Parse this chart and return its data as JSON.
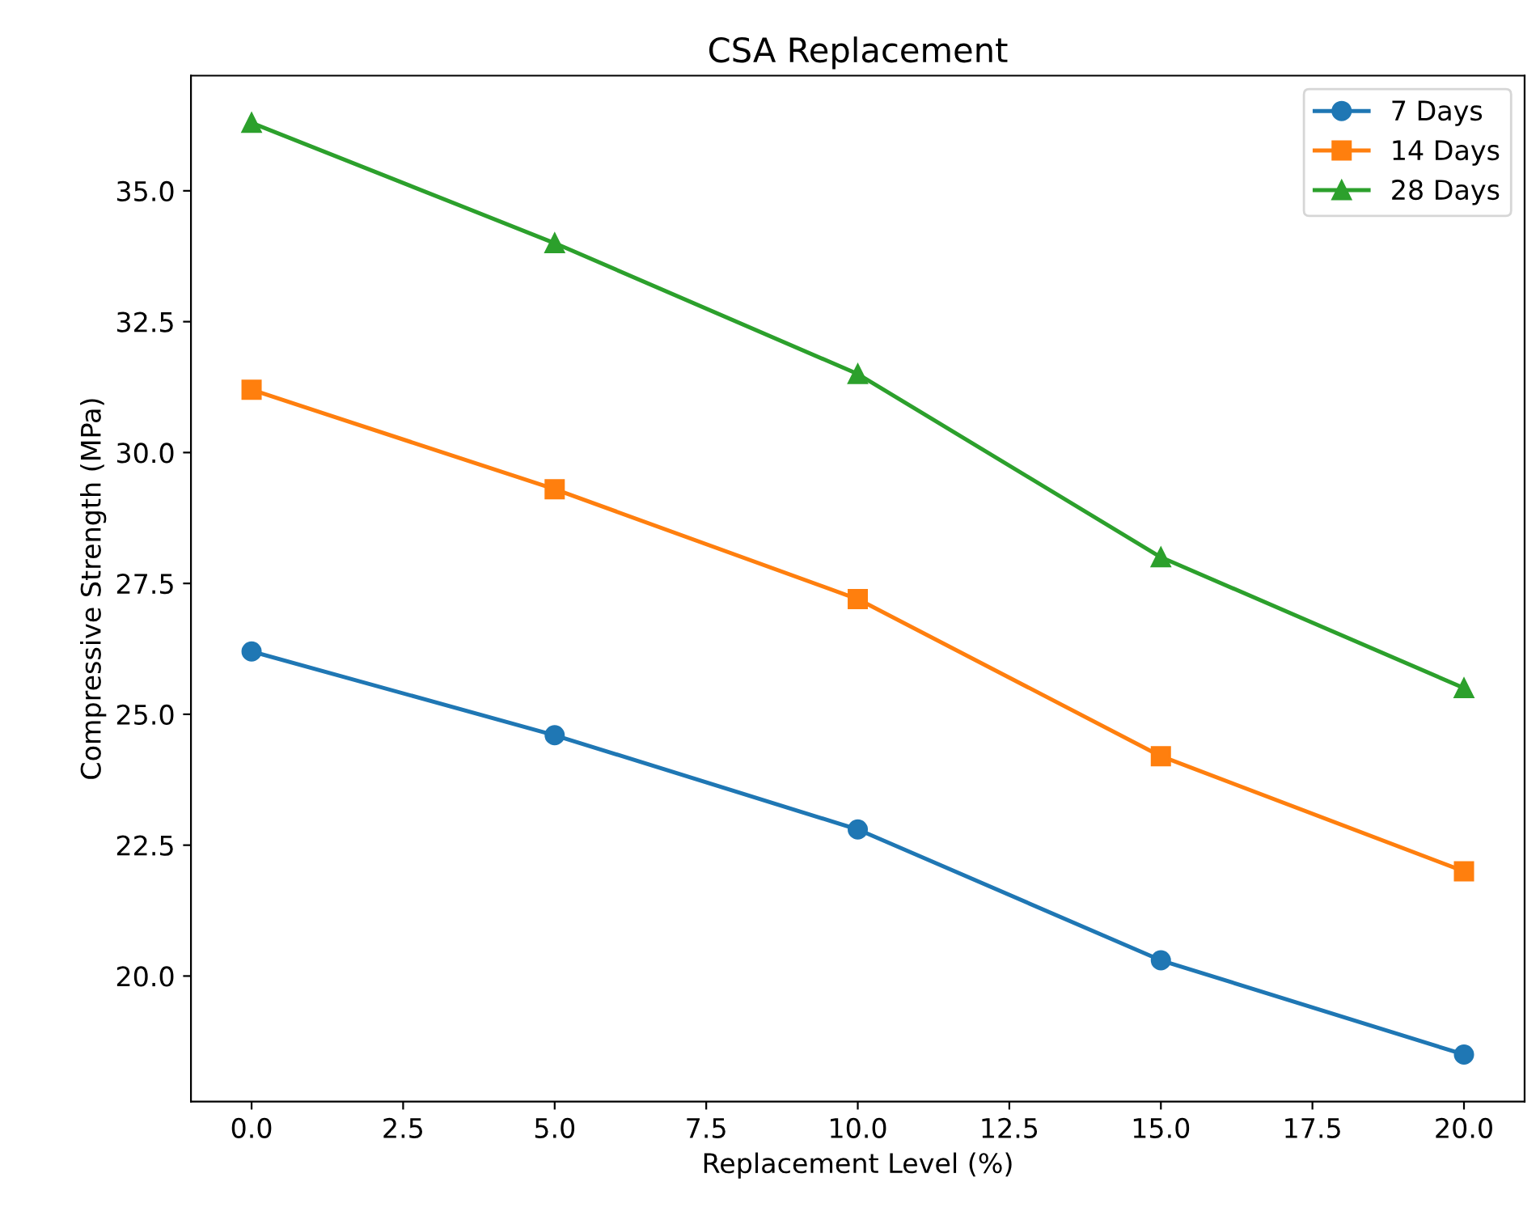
{
  "chart_data": {
    "type": "line",
    "title": "CSA Replacement",
    "xlabel": "Replacement Level (%)",
    "ylabel": "Compressive Strength (MPa)",
    "x": [
      0,
      5,
      10,
      15,
      20
    ],
    "series": [
      {
        "name": "7 Days",
        "color": "#1f77b4",
        "marker": "circle",
        "values": [
          26.2,
          24.6,
          22.8,
          20.3,
          18.5
        ]
      },
      {
        "name": "14 Days",
        "color": "#ff7f0e",
        "marker": "square",
        "values": [
          31.2,
          29.3,
          27.2,
          24.2,
          22.0
        ]
      },
      {
        "name": "28 Days",
        "color": "#2ca02c",
        "marker": "triangle",
        "values": [
          36.3,
          34.0,
          31.5,
          28.0,
          25.5
        ]
      }
    ],
    "xlim": [
      -1,
      21
    ],
    "ylim": [
      17.6,
      37.2
    ],
    "xticks": [
      {
        "value": 0,
        "label": "0.0"
      },
      {
        "value": 2.5,
        "label": "2.5"
      },
      {
        "value": 5,
        "label": "5.0"
      },
      {
        "value": 7.5,
        "label": "7.5"
      },
      {
        "value": 10,
        "label": "10.0"
      },
      {
        "value": 12.5,
        "label": "12.5"
      },
      {
        "value": 15,
        "label": "15.0"
      },
      {
        "value": 17.5,
        "label": "17.5"
      },
      {
        "value": 20,
        "label": "20.0"
      }
    ],
    "yticks": [
      {
        "value": 20,
        "label": "20.0"
      },
      {
        "value": 22.5,
        "label": "22.5"
      },
      {
        "value": 25,
        "label": "25.0"
      },
      {
        "value": 27.5,
        "label": "27.5"
      },
      {
        "value": 30,
        "label": "30.0"
      },
      {
        "value": 32.5,
        "label": "32.5"
      },
      {
        "value": 35,
        "label": "35.0"
      }
    ],
    "legend": "top right",
    "grid": false,
    "line_style": "solid"
  }
}
